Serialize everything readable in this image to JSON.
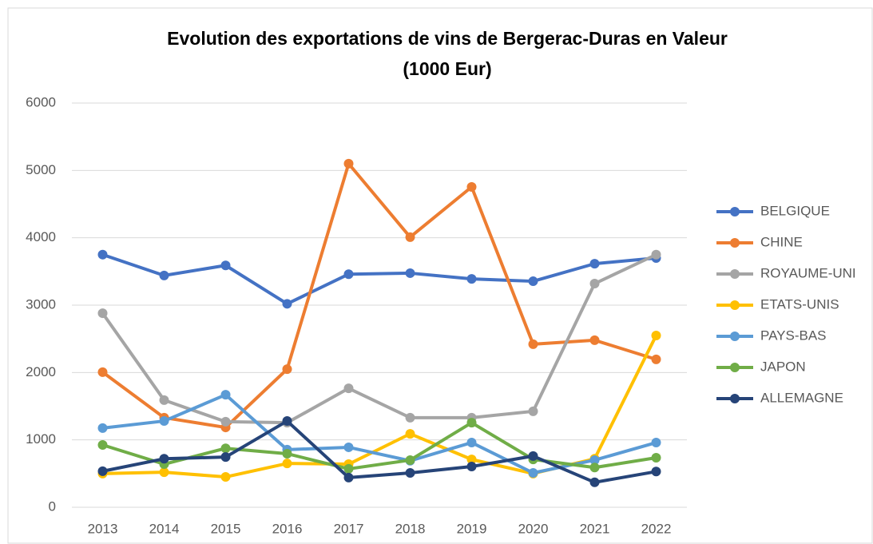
{
  "chart_data": {
    "type": "line",
    "title": [
      "Evolution des exportations de vins de Bergerac-Duras  en Valeur",
      "(1000 Eur)"
    ],
    "categories": [
      "2013",
      "2014",
      "2015",
      "2016",
      "2017",
      "2018",
      "2019",
      "2020",
      "2021",
      "2022"
    ],
    "series": [
      {
        "name": "BELGIQUE",
        "color": "#4472c4",
        "values": [
          3750,
          3440,
          3590,
          3020,
          3460,
          3475,
          3390,
          3355,
          3615,
          3700
        ]
      },
      {
        "name": "CHINE",
        "color": "#ed7d31",
        "values": [
          2005,
          1330,
          1185,
          2050,
          5100,
          4010,
          4755,
          2420,
          2480,
          2195
        ]
      },
      {
        "name": "ROYAUME-UNI",
        "color": "#a5a5a5",
        "values": [
          2880,
          1590,
          1270,
          1255,
          1765,
          1330,
          1330,
          1425,
          3320,
          3750
        ]
      },
      {
        "name": "ETATS-UNIS",
        "color": "#ffc000",
        "values": [
          500,
          520,
          450,
          650,
          640,
          1090,
          710,
          500,
          720,
          2550
        ]
      },
      {
        "name": "PAYS-BAS",
        "color": "#5b9bd5",
        "values": [
          1175,
          1280,
          1670,
          855,
          890,
          690,
          960,
          510,
          700,
          960
        ]
      },
      {
        "name": "JAPON",
        "color": "#70ad47",
        "values": [
          925,
          640,
          875,
          795,
          570,
          700,
          1255,
          710,
          590,
          735
        ]
      },
      {
        "name": "ALLEMAGNE",
        "color": "#264478",
        "values": [
          535,
          720,
          745,
          1280,
          440,
          510,
          605,
          760,
          370,
          530
        ]
      }
    ],
    "ylim": [
      0,
      6000
    ],
    "yticks": [
      0,
      1000,
      2000,
      3000,
      4000,
      5000,
      6000
    ],
    "grid": true,
    "legend": "right"
  }
}
